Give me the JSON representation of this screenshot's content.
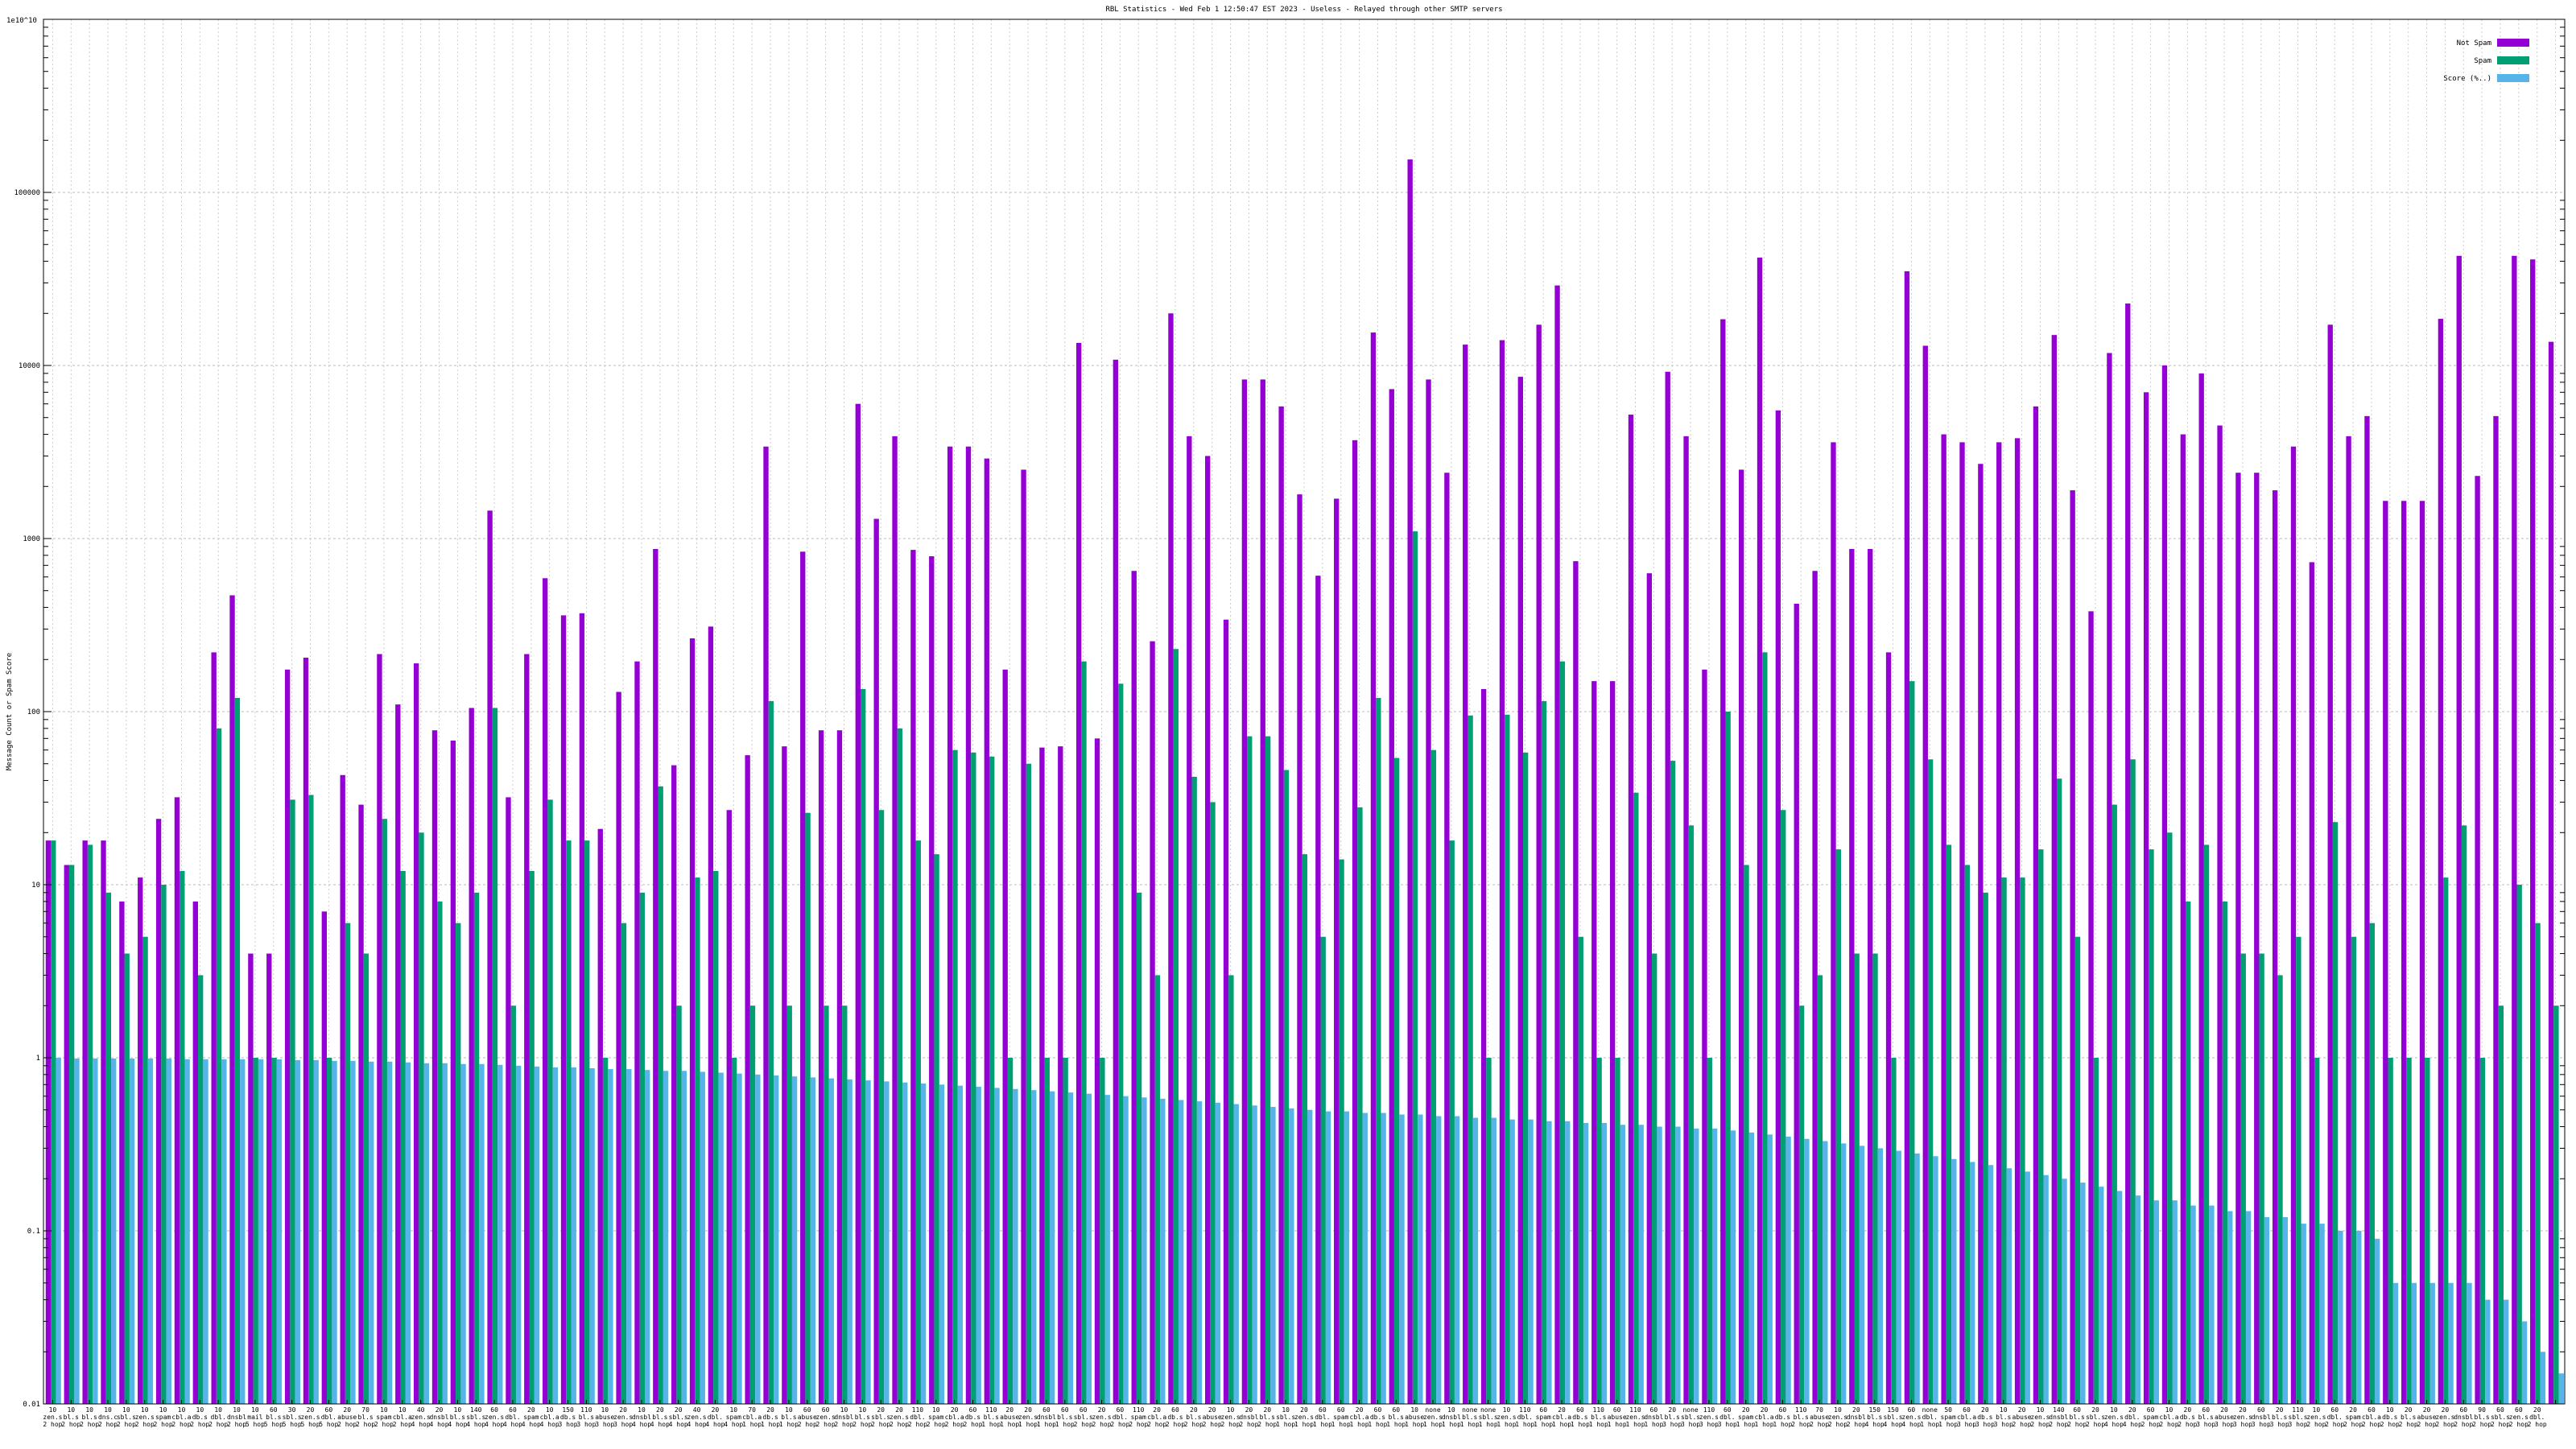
{
  "chart_data": {
    "type": "bar",
    "title": "RBL Statistics - Wed Feb  1 12:50:47 EST 2023 - Useless - Relayed through other SMTP servers",
    "ylabel": "Message Count or Spam Score",
    "y_top_label": "1e10^10",
    "yscale": "log",
    "ylim": [
      0.01,
      1000000
    ],
    "y_ticks": [
      {
        "value": 0.01,
        "label": "0.01"
      },
      {
        "value": 0.1,
        "label": "0.1"
      },
      {
        "value": 1,
        "label": "1"
      },
      {
        "value": 10,
        "label": "10"
      },
      {
        "value": 100,
        "label": "100"
      },
      {
        "value": 1000,
        "label": "1000"
      },
      {
        "value": 10000,
        "label": "10000"
      },
      {
        "value": 100000,
        "label": "100000"
      }
    ],
    "grid": true,
    "legend_position": "top-right",
    "colors": {
      "not_spam": "#9400d3",
      "spam": "#009e73",
      "score": "#56b4e9"
    },
    "series": [
      {
        "name": "Not Spam",
        "key": "not_spam",
        "values": [
          18,
          13,
          18,
          18,
          8,
          11,
          24,
          32,
          8,
          220,
          470,
          4,
          4,
          175,
          205,
          7,
          43,
          29,
          215,
          110,
          190,
          78,
          68,
          105,
          1450,
          32,
          215,
          590,
          360,
          370,
          21,
          130,
          195,
          870,
          49,
          265,
          310,
          27,
          56,
          3400,
          63,
          840,
          78,
          78,
          6000,
          1300,
          3900,
          860,
          790,
          3400,
          3400,
          2900,
          175,
          2500,
          62,
          63,
          13500,
          70,
          10800,
          650,
          255,
          20000,
          3900,
          3000,
          340,
          8300,
          8300,
          5800,
          1800,
          610,
          1700,
          3700,
          15500,
          7300,
          155000,
          8300,
          2400,
          13200,
          135,
          14000,
          8600,
          17200,
          29000,
          740,
          150,
          150,
          5200,
          630,
          9200,
          3900,
          175,
          18500,
          2500,
          42000,
          5500,
          420,
          650,
          3600,
          870,
          870,
          220,
          35000,
          13000,
          4000,
          3600,
          2700,
          3600,
          3800,
          5800,
          15000,
          1900,
          380,
          11800,
          22800,
          7000,
          10000,
          4000,
          9000,
          4500,
          2400,
          2400,
          1900,
          3400,
          730,
          17200,
          3900,
          5100,
          1650,
          1650,
          1650,
          18600,
          43000,
          2300,
          5100,
          43000,
          41000,
          13700
        ]
      },
      {
        "name": "Spam",
        "key": "spam",
        "values": [
          18,
          13,
          17,
          9,
          4,
          5,
          10,
          12,
          3,
          80,
          120,
          1,
          1,
          31,
          33,
          1,
          6,
          4,
          24,
          12,
          20,
          8,
          6,
          9,
          105,
          2,
          12,
          31,
          18,
          18,
          1,
          6,
          9,
          37,
          2,
          11,
          12,
          1,
          2,
          115,
          2,
          26,
          2,
          2,
          135,
          27,
          80,
          18,
          15,
          60,
          58,
          55,
          1,
          50,
          1,
          1,
          195,
          1,
          145,
          9,
          3,
          230,
          42,
          30,
          3,
          72,
          72,
          46,
          15,
          5,
          14,
          28,
          120,
          54,
          1100,
          60,
          18,
          95,
          1,
          96,
          58,
          115,
          195,
          5,
          1,
          1,
          34,
          4,
          52,
          22,
          1,
          100,
          13,
          220,
          27,
          2,
          3,
          16,
          4,
          4,
          1,
          150,
          53,
          17,
          13,
          9,
          11,
          11,
          16,
          41,
          5,
          1,
          29,
          53,
          16,
          20,
          8,
          17,
          8,
          4,
          4,
          3,
          5,
          1,
          23,
          5,
          6,
          1,
          1,
          1,
          11,
          22,
          1,
          2,
          10,
          6,
          2
        ]
      },
      {
        "name": "Score (%..)",
        "key": "score",
        "values": [
          1.0,
          0.99,
          0.99,
          0.99,
          0.99,
          0.99,
          0.99,
          0.98,
          0.98,
          0.98,
          0.98,
          0.98,
          0.98,
          0.97,
          0.97,
          0.96,
          0.96,
          0.95,
          0.95,
          0.94,
          0.93,
          0.93,
          0.92,
          0.92,
          0.91,
          0.9,
          0.89,
          0.88,
          0.88,
          0.87,
          0.86,
          0.86,
          0.85,
          0.84,
          0.84,
          0.83,
          0.82,
          0.81,
          0.8,
          0.79,
          0.78,
          0.77,
          0.76,
          0.75,
          0.74,
          0.73,
          0.72,
          0.71,
          0.7,
          0.69,
          0.68,
          0.67,
          0.66,
          0.65,
          0.64,
          0.63,
          0.62,
          0.61,
          0.6,
          0.59,
          0.58,
          0.57,
          0.56,
          0.55,
          0.54,
          0.53,
          0.52,
          0.51,
          0.5,
          0.49,
          0.49,
          0.48,
          0.48,
          0.47,
          0.47,
          0.46,
          0.46,
          0.45,
          0.45,
          0.44,
          0.44,
          0.43,
          0.43,
          0.42,
          0.42,
          0.41,
          0.41,
          0.4,
          0.4,
          0.39,
          0.39,
          0.38,
          0.37,
          0.36,
          0.35,
          0.34,
          0.33,
          0.32,
          0.31,
          0.3,
          0.29,
          0.28,
          0.27,
          0.26,
          0.25,
          0.24,
          0.23,
          0.22,
          0.21,
          0.2,
          0.19,
          0.18,
          0.17,
          0.16,
          0.15,
          0.15,
          0.14,
          0.14,
          0.13,
          0.13,
          0.12,
          0.12,
          0.11,
          0.11,
          0.1,
          0.1,
          0.09,
          0.05,
          0.05,
          0.05,
          0.05,
          0.05,
          0.04,
          0.04,
          0.03,
          0.02,
          0.015
        ]
      }
    ],
    "category_labels": [
      [
        "10",
        "zen.s",
        "2 hop"
      ],
      [
        "10",
        "bl.s",
        "2 hop"
      ],
      [
        "10",
        "bl.s",
        "2 hop"
      ],
      [
        "10",
        "dns.c",
        "2 hop"
      ],
      [
        "10",
        "sbl.s",
        "2 hop"
      ],
      [
        "10",
        "zen.s",
        "2 hop"
      ],
      [
        "10",
        "spam",
        "2 hop"
      ],
      [
        "10",
        "cbl.a",
        "2 hop"
      ],
      [
        "10",
        "db.s",
        "2 hop"
      ],
      [
        "10",
        "dbl.",
        "2 hop"
      ],
      [
        "10",
        "dnsbl",
        "2 hop"
      ],
      [
        "10",
        "mail",
        "5 hop"
      ],
      [
        "60",
        "bl.s",
        "5 hop"
      ],
      [
        "30",
        "sbl.s",
        "5 hop"
      ],
      [
        "20",
        "zen.s",
        "5 hop"
      ],
      [
        "60",
        "dbl.",
        "5 hop"
      ],
      [
        "20",
        "abuse",
        "2 hop"
      ],
      [
        "70",
        "bl.s",
        "2 hop"
      ],
      [
        "10",
        "spam",
        "2 hop"
      ],
      [
        "10",
        "cbl.a",
        "2 hop"
      ],
      [
        "40",
        "zen.s",
        "4 hop"
      ],
      [
        "20",
        "dnsbl",
        "4 hop"
      ],
      [
        "10",
        "bl.s",
        "4 hop"
      ],
      [
        "140",
        "sbl.s",
        "4 hop"
      ],
      [
        "60",
        "zen.s",
        "4 hop"
      ],
      [
        "60",
        "dbl.",
        "4 hop"
      ],
      [
        "20",
        "spam",
        "4 hop"
      ],
      [
        "10",
        "cbl.a",
        "4 hop"
      ],
      [
        "150",
        "db.s",
        "3 hop"
      ],
      [
        "110",
        "bl.s",
        "3 hop"
      ],
      [
        "10",
        "abuse",
        "3 hop"
      ],
      [
        "20",
        "zen.s",
        "3 hop"
      ],
      [
        "10",
        "dnsbl",
        "4 hop"
      ],
      [
        "20",
        "bl.s",
        "4 hop"
      ],
      [
        "20",
        "sbl.s",
        "4 hop"
      ],
      [
        "40",
        "zen.s",
        "4 hop"
      ],
      [
        "20",
        "dbl.",
        "4 hop"
      ],
      [
        "10",
        "spam",
        "4 hop"
      ],
      [
        "70",
        "cbl.a",
        "1 hop"
      ],
      [
        "20",
        "db.s",
        "1 hop"
      ],
      [
        "10",
        "bl.s",
        "1 hop"
      ],
      [
        "60",
        "abuse",
        "2 hop"
      ],
      [
        "60",
        "zen.s",
        "2 hop"
      ],
      [
        "10",
        "dnsbl",
        "2 hop"
      ],
      [
        "10",
        "bl.s",
        "2 hop"
      ],
      [
        "20",
        "sbl.s",
        "2 hop"
      ],
      [
        "20",
        "zen.s",
        "2 hop"
      ],
      [
        "110",
        "dbl.",
        "2 hop"
      ],
      [
        "10",
        "spam",
        "2 hop"
      ],
      [
        "20",
        "cbl.a",
        "2 hop"
      ],
      [
        "60",
        "db.s",
        "2 hop"
      ],
      [
        "110",
        "bl.s",
        "1 hop"
      ],
      [
        "20",
        "abuse",
        "1 hop"
      ],
      [
        "20",
        "zen.s",
        "1 hop"
      ],
      [
        "60",
        "dnsbl",
        "1 hop"
      ],
      [
        "60",
        "bl.s",
        "1 hop"
      ],
      [
        "60",
        "sbl.s",
        "2 hop"
      ],
      [
        "20",
        "zen.s",
        "2 hop"
      ],
      [
        "60",
        "dbl.",
        "2 hop"
      ],
      [
        "110",
        "spam",
        "2 hop"
      ],
      [
        "20",
        "cbl.a",
        "2 hop"
      ],
      [
        "60",
        "db.s",
        "2 hop"
      ],
      [
        "20",
        "bl.s",
        "2 hop"
      ],
      [
        "20",
        "abuse",
        "2 hop"
      ],
      [
        "10",
        "zen.s",
        "2 hop"
      ],
      [
        "20",
        "dnsbl",
        "2 hop"
      ],
      [
        "20",
        "bl.s",
        "2 hop"
      ],
      [
        "10",
        "sbl.s",
        "1 hop"
      ],
      [
        "20",
        "zen.s",
        "1 hop"
      ],
      [
        "60",
        "dbl.",
        "1 hop"
      ],
      [
        "60",
        "spam",
        "1 hop"
      ],
      [
        "20",
        "cbl.a",
        "1 hop"
      ],
      [
        "60",
        "db.s",
        "1 hop"
      ],
      [
        "60",
        "bl.s",
        "1 hop"
      ],
      [
        "10",
        "abuse",
        "1 hop"
      ],
      [
        "none",
        "zen.s",
        "1 hop"
      ],
      [
        "10",
        "dnsbl",
        "1 hop"
      ],
      [
        "none",
        "bl.s",
        "1 hop"
      ],
      [
        "none",
        "sbl.s",
        "1 hop"
      ],
      [
        "10",
        "zen.s",
        "1 hop"
      ],
      [
        "110",
        "dbl.",
        "1 hop"
      ],
      [
        "60",
        "spam",
        "1 hop"
      ],
      [
        "20",
        "cbl.a",
        "1 hop"
      ],
      [
        "60",
        "db.s",
        "1 hop"
      ],
      [
        "110",
        "bl.s",
        "1 hop"
      ],
      [
        "60",
        "abuse",
        "1 hop"
      ],
      [
        "110",
        "zen.s",
        "1 hop"
      ],
      [
        "60",
        "dnsbl",
        "1 hop"
      ],
      [
        "20",
        "bl.s",
        "3 hop"
      ],
      [
        "none",
        "sbl.s",
        "3 hop"
      ],
      [
        "110",
        "zen.s",
        "3 hop"
      ],
      [
        "60",
        "dbl.",
        "3 hop"
      ],
      [
        "20",
        "spam",
        "1 hop"
      ],
      [
        "20",
        "cbl.a",
        "1 hop"
      ],
      [
        "60",
        "db.s",
        "1 hop"
      ],
      [
        "110",
        "bl.s",
        "2 hop"
      ],
      [
        "70",
        "abuse",
        "2 hop"
      ],
      [
        "10",
        "zen.s",
        "2 hop"
      ],
      [
        "20",
        "dnsbl",
        "2 hop"
      ],
      [
        "150",
        "bl.s",
        "4 hop"
      ],
      [
        "150",
        "sbl.s",
        "4 hop"
      ],
      [
        "60",
        "zen.s",
        "4 hop"
      ],
      [
        "none",
        "dbl.",
        "1 hop"
      ],
      [
        "50",
        "spam",
        "1 hop"
      ],
      [
        "60",
        "cbl.a",
        "3 hop"
      ],
      [
        "20",
        "db.s",
        "3 hop"
      ],
      [
        "10",
        "bl.s",
        "3 hop"
      ],
      [
        "20",
        "abuse",
        "2 hop"
      ],
      [
        "10",
        "zen.s",
        "2 hop"
      ],
      [
        "140",
        "dnsbl",
        "2 hop"
      ],
      [
        "60",
        "bl.s",
        "2 hop"
      ],
      [
        "20",
        "sbl.s",
        "2 hop"
      ],
      [
        "10",
        "zen.s",
        "4 hop"
      ],
      [
        "20",
        "dbl.",
        "4 hop"
      ],
      [
        "60",
        "spam",
        "2 hop"
      ],
      [
        "10",
        "cbl.a",
        "2 hop"
      ],
      [
        "20",
        "db.s",
        "2 hop"
      ],
      [
        "60",
        "bl.s",
        "3 hop"
      ],
      [
        "20",
        "abuse",
        "3 hop"
      ],
      [
        "20",
        "zen.s",
        "3 hop"
      ],
      [
        "60",
        "dnsbl",
        "3 hop"
      ],
      [
        "20",
        "bl.s",
        "3 hop"
      ],
      [
        "110",
        "sbl.s",
        "3 hop"
      ],
      [
        "10",
        "zen.s",
        "2 hop"
      ],
      [
        "60",
        "dbl.",
        "2 hop"
      ],
      [
        "20",
        "spam",
        "2 hop"
      ],
      [
        "60",
        "cbl.a",
        "2 hop"
      ],
      [
        "10",
        "db.s",
        "2 hop"
      ],
      [
        "20",
        "bl.s",
        "2 hop"
      ],
      [
        "20",
        "abuse",
        "2 hop"
      ],
      [
        "20",
        "zen.s",
        "2 hop"
      ],
      [
        "60",
        "dnsbl",
        "2 hop"
      ],
      [
        "90",
        "bl.s",
        "2 hop"
      ],
      [
        "60",
        "sbl.s",
        "2 hop"
      ],
      [
        "60",
        "zen.s",
        "2 hop"
      ],
      [
        "20",
        "dbl.",
        "2 hop"
      ]
    ]
  }
}
